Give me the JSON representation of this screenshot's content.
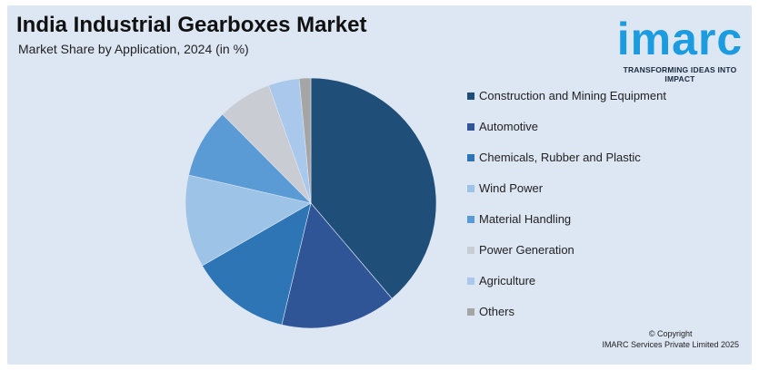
{
  "header": {
    "title": "India Industrial Gearboxes Market",
    "subtitle": "Market Share by Application, 2024 (in %)"
  },
  "logo": {
    "word": "imarc",
    "tagline": "TRANSFORMING IDEAS INTO IMPACT",
    "color": "#1b9be0"
  },
  "footer": {
    "copyright_line1": "© Copyright",
    "copyright_line2": "IMARC Services Private Limited 2025"
  },
  "chart_data": {
    "type": "pie",
    "title": "India Industrial Gearboxes Market",
    "subtitle": "Market Share by Application, 2024 (in %)",
    "legend_position": "right",
    "start_angle": "12 o'clock, clockwise",
    "slices": [
      {
        "label": "Construction and Mining Equipment",
        "value": 39,
        "color": "#1f4e79"
      },
      {
        "label": "Automotive",
        "value": 15,
        "color": "#2f5597"
      },
      {
        "label": "Chemicals, Rubber and Plastic",
        "value": 13,
        "color": "#2e75b6"
      },
      {
        "label": "Wind Power",
        "value": 12,
        "color": "#9dc3e6"
      },
      {
        "label": "Material Handling",
        "value": 9,
        "color": "#5b9bd5"
      },
      {
        "label": "Power Generation",
        "value": 7,
        "color": "#c9cdd3"
      },
      {
        "label": "Agriculture",
        "value": 4,
        "color": "#a9c8ec"
      },
      {
        "label": "Others",
        "value": 1.5,
        "color": "#a5a5a5"
      }
    ]
  }
}
